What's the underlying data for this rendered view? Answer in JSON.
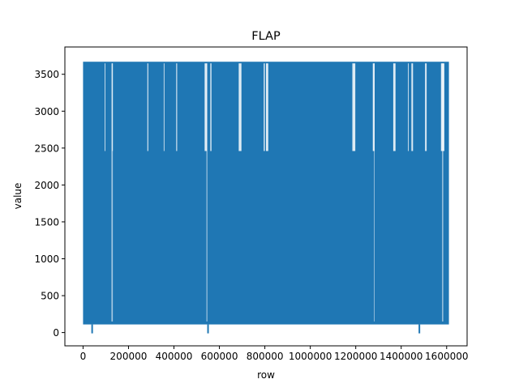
{
  "chart_data": {
    "type": "line",
    "title": "FLAP",
    "xlabel": "row",
    "ylabel": "value",
    "xlim": [
      -80000,
      1690000
    ],
    "ylim": [
      -180,
      3870
    ],
    "xticks": [
      0,
      200000,
      400000,
      600000,
      800000,
      1000000,
      1200000,
      1400000,
      1600000
    ],
    "xtick_labels": [
      "0",
      "200000",
      "400000",
      "600000",
      "800000",
      "1000000",
      "1200000",
      "1400000",
      "1600000"
    ],
    "yticks": [
      0,
      500,
      1000,
      1500,
      2000,
      2500,
      3000,
      3500
    ],
    "ytick_labels": [
      "0",
      "500",
      "1000",
      "1500",
      "2000",
      "2500",
      "3000",
      "3500"
    ],
    "grid": false,
    "series": [
      {
        "color": "#1f77b4",
        "x_range": [
          0,
          1610000
        ],
        "band_low": 110,
        "band_high": 3670,
        "mid_level": 2460,
        "dips_to_zero_at": [
          40000,
          550000,
          1480000
        ],
        "gaps_above_mid": [
          [
            95000,
            98000
          ],
          [
            128000,
            131000
          ],
          [
            283000,
            287000
          ],
          [
            355000,
            358000
          ],
          [
            410000,
            414000
          ],
          [
            535000,
            545000
          ],
          [
            560000,
            565000
          ],
          [
            685000,
            697000
          ],
          [
            795000,
            800000
          ],
          [
            805000,
            815000
          ],
          [
            1185000,
            1198000
          ],
          [
            1275000,
            1283000
          ],
          [
            1365000,
            1375000
          ],
          [
            1430000,
            1433000
          ],
          [
            1445000,
            1452000
          ],
          [
            1505000,
            1512000
          ],
          [
            1575000,
            1590000
          ]
        ],
        "gaps_above_low": [
          [
            125000,
            131000
          ],
          [
            543000,
            547000
          ],
          [
            1280000,
            1282000
          ],
          [
            1580000,
            1585000
          ]
        ]
      }
    ]
  }
}
